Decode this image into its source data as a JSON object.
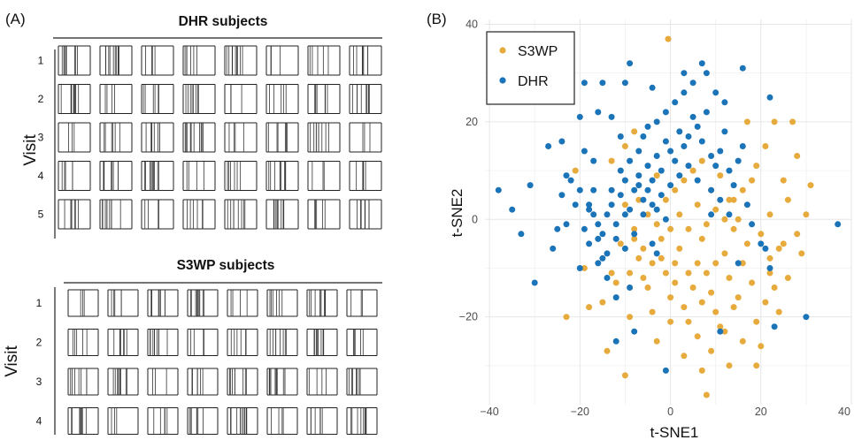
{
  "panel_a": {
    "label": "(A)",
    "visit_axis_label": "Visit",
    "groups": [
      {
        "title": "DHR subjects",
        "visits": [
          "1",
          "2",
          "3",
          "4",
          "5"
        ],
        "subject_count": 8
      },
      {
        "title": "S3WP subjects",
        "visits": [
          "1",
          "2",
          "3",
          "4"
        ],
        "subject_count": 8
      }
    ]
  },
  "panel_b": {
    "label": "(B)"
  },
  "colors": {
    "S3WP": "#E6AB3C",
    "DHR": "#1B73B8",
    "grid": "#e6e6e6"
  },
  "chart_data": {
    "type": "scatter",
    "xlabel": "t-SNE1",
    "ylabel": "t-SNE2",
    "xlim": [
      -41,
      40
    ],
    "ylim": [
      -38,
      41
    ],
    "xticks": [
      -40,
      -20,
      0,
      20,
      40
    ],
    "yticks": [
      -20,
      0,
      20,
      40
    ],
    "grid": true,
    "legend_position": "top-left",
    "series": [
      {
        "name": "S3WP",
        "points": [
          [
            -0.5,
            37
          ],
          [
            -21,
            10
          ],
          [
            -23,
            -20
          ],
          [
            -10,
            -32
          ],
          [
            -14,
            -27
          ],
          [
            -12,
            -13
          ],
          [
            -15,
            -17
          ],
          [
            -9,
            -11
          ],
          [
            -7,
            -8
          ],
          [
            -5,
            -14
          ],
          [
            -4,
            -19
          ],
          [
            -3,
            -25
          ],
          [
            -8,
            -4
          ],
          [
            -6,
            -6
          ],
          [
            -2,
            -8
          ],
          [
            -1,
            -11
          ],
          [
            0,
            -16
          ],
          [
            1,
            -13
          ],
          [
            2,
            -6
          ],
          [
            3,
            -18
          ],
          [
            4,
            -21
          ],
          [
            5,
            -14
          ],
          [
            6,
            -9
          ],
          [
            7,
            -4
          ],
          [
            8,
            -11
          ],
          [
            9,
            -15
          ],
          [
            10,
            -19
          ],
          [
            11,
            -22
          ],
          [
            12,
            -7
          ],
          [
            13,
            -12
          ],
          [
            14,
            -2
          ],
          [
            15,
            -16
          ],
          [
            16,
            -9
          ],
          [
            17,
            -5
          ],
          [
            18,
            -13
          ],
          [
            19,
            -21
          ],
          [
            20,
            -26
          ],
          [
            21,
            -17
          ],
          [
            22,
            -8
          ],
          [
            23,
            -14
          ],
          [
            24,
            -19
          ],
          [
            25,
            -5
          ],
          [
            0,
            -2
          ],
          [
            2,
            1
          ],
          [
            4,
            -2
          ],
          [
            6,
            3
          ],
          [
            8,
            -1
          ],
          [
            10,
            2
          ],
          [
            12,
            0
          ],
          [
            14,
            4
          ],
          [
            16,
            6
          ],
          [
            18,
            8
          ],
          [
            19,
            11
          ],
          [
            21,
            15
          ],
          [
            23,
            20
          ],
          [
            17,
            20
          ],
          [
            27,
            20
          ],
          [
            28,
            13
          ],
          [
            31,
            7
          ],
          [
            30,
            1
          ],
          [
            28,
            -3
          ],
          [
            29,
            -7
          ],
          [
            26,
            -12
          ],
          [
            24,
            -6
          ],
          [
            26,
            4
          ],
          [
            25,
            8
          ],
          [
            22,
            1
          ],
          [
            20,
            -3
          ],
          [
            -3,
            -1
          ],
          [
            -5,
            1
          ],
          [
            -8,
            -2
          ],
          [
            -10,
            3
          ],
          [
            -7,
            4
          ],
          [
            -1,
            4
          ],
          [
            1,
            6
          ],
          [
            3,
            8
          ],
          [
            5,
            10
          ],
          [
            7,
            12
          ],
          [
            9,
            6
          ],
          [
            11,
            9
          ],
          [
            13,
            4
          ],
          [
            15,
            0
          ],
          [
            -2,
            -4
          ],
          [
            -4,
            -9
          ],
          [
            -6,
            -12
          ],
          [
            -9,
            -20
          ],
          [
            -13,
            -11
          ],
          [
            -11,
            -5
          ],
          [
            0,
            -21
          ],
          [
            3,
            -28
          ],
          [
            7,
            -31
          ],
          [
            8,
            -36
          ],
          [
            13,
            -30
          ],
          [
            16,
            -25
          ],
          [
            19,
            -30
          ],
          [
            -3,
            9
          ],
          [
            -8,
            18
          ],
          [
            -10,
            15
          ],
          [
            -13,
            12
          ],
          [
            22,
            -11
          ],
          [
            -19,
            -10
          ],
          [
            -18,
            -18
          ],
          [
            6,
            -24
          ],
          [
            9,
            -27
          ],
          [
            12,
            -23
          ],
          [
            1,
            -9
          ],
          [
            4,
            -11
          ],
          [
            7,
            -17
          ],
          [
            10,
            -9
          ],
          [
            14,
            -18
          ]
        ]
      },
      {
        "name": "DHR",
        "points": [
          [
            -38,
            6
          ],
          [
            -31,
            7
          ],
          [
            -33,
            -3
          ],
          [
            -30,
            -13
          ],
          [
            -26,
            -6
          ],
          [
            -25,
            -2
          ],
          [
            -24,
            5
          ],
          [
            -23,
            9
          ],
          [
            -20,
            -10
          ],
          [
            -19,
            -2
          ],
          [
            -18,
            3
          ],
          [
            -17,
            6
          ],
          [
            -16,
            -4
          ],
          [
            -15,
            -8
          ],
          [
            -14,
            1
          ],
          [
            -13,
            3
          ],
          [
            -12,
            -1
          ],
          [
            -11,
            5
          ],
          [
            -10,
            8
          ],
          [
            -9,
            2
          ],
          [
            -8,
            -3
          ],
          [
            -7,
            7
          ],
          [
            -6,
            4
          ],
          [
            -5,
            11
          ],
          [
            -4,
            8
          ],
          [
            -3,
            13
          ],
          [
            -2,
            10
          ],
          [
            -1,
            16
          ],
          [
            0,
            14
          ],
          [
            1,
            12
          ],
          [
            2,
            18
          ],
          [
            3,
            15
          ],
          [
            4,
            17
          ],
          [
            5,
            21
          ],
          [
            6,
            19
          ],
          [
            7,
            16
          ],
          [
            8,
            22
          ],
          [
            9,
            13
          ],
          [
            10,
            11
          ],
          [
            11,
            14
          ],
          [
            12,
            18
          ],
          [
            13,
            10
          ],
          [
            14,
            7
          ],
          [
            15,
            12
          ],
          [
            16,
            15
          ],
          [
            17,
            3
          ],
          [
            18,
            -1
          ],
          [
            20,
            -5
          ],
          [
            22,
            -10
          ],
          [
            22,
            25
          ],
          [
            16,
            31
          ],
          [
            7,
            32
          ],
          [
            3,
            30
          ],
          [
            -4,
            27
          ],
          [
            -10,
            28
          ],
          [
            -9,
            32
          ],
          [
            -15,
            28
          ],
          [
            -16,
            22
          ],
          [
            -13,
            21
          ],
          [
            -11,
            17
          ],
          [
            -20,
            21
          ],
          [
            -24,
            16
          ],
          [
            -27,
            15
          ],
          [
            -19,
            14
          ],
          [
            -17,
            12
          ],
          [
            -22,
            8
          ],
          [
            -21,
            3
          ],
          [
            -18,
            -5
          ],
          [
            -16,
            -9
          ],
          [
            -14,
            -12
          ],
          [
            -12,
            -16
          ],
          [
            -10,
            -6
          ],
          [
            -9,
            -14
          ],
          [
            -8,
            -23
          ],
          [
            -12,
            -25
          ],
          [
            -15,
            -3
          ],
          [
            -17,
            1
          ],
          [
            -13,
            6
          ],
          [
            -11,
            10
          ],
          [
            -9,
            12
          ],
          [
            -7,
            14
          ],
          [
            -6,
            17
          ],
          [
            -5,
            19
          ],
          [
            -3,
            20
          ],
          [
            -1,
            22
          ],
          [
            1,
            24
          ],
          [
            3,
            26
          ],
          [
            5,
            28
          ],
          [
            8,
            30
          ],
          [
            10,
            26
          ],
          [
            12,
            24
          ],
          [
            4,
            11
          ],
          [
            2,
            9
          ],
          [
            0,
            7
          ],
          [
            -2,
            5
          ],
          [
            -4,
            3
          ],
          [
            -6,
            1
          ],
          [
            -8,
            6
          ],
          [
            -10,
            1
          ],
          [
            -12,
            -4
          ],
          [
            -14,
            -7
          ],
          [
            -16,
            -1
          ],
          [
            -18,
            2
          ],
          [
            -20,
            6
          ],
          [
            -7,
            9
          ],
          [
            -5,
            6
          ],
          [
            -3,
            2
          ],
          [
            -1,
            0
          ],
          [
            6,
            8
          ],
          [
            9,
            6
          ],
          [
            11,
            4
          ],
          [
            13,
            1
          ],
          [
            37,
            -1
          ],
          [
            30,
            -20
          ],
          [
            23,
            -22
          ],
          [
            -1,
            -31
          ],
          [
            11,
            -23
          ],
          [
            -35,
            2
          ],
          [
            -19,
            28
          ],
          [
            -23,
            -1
          ],
          [
            -4,
            -5
          ],
          [
            9,
            1
          ],
          [
            15,
            -9
          ],
          [
            21,
            -6
          ],
          [
            -3,
            -7
          ]
        ]
      }
    ]
  }
}
